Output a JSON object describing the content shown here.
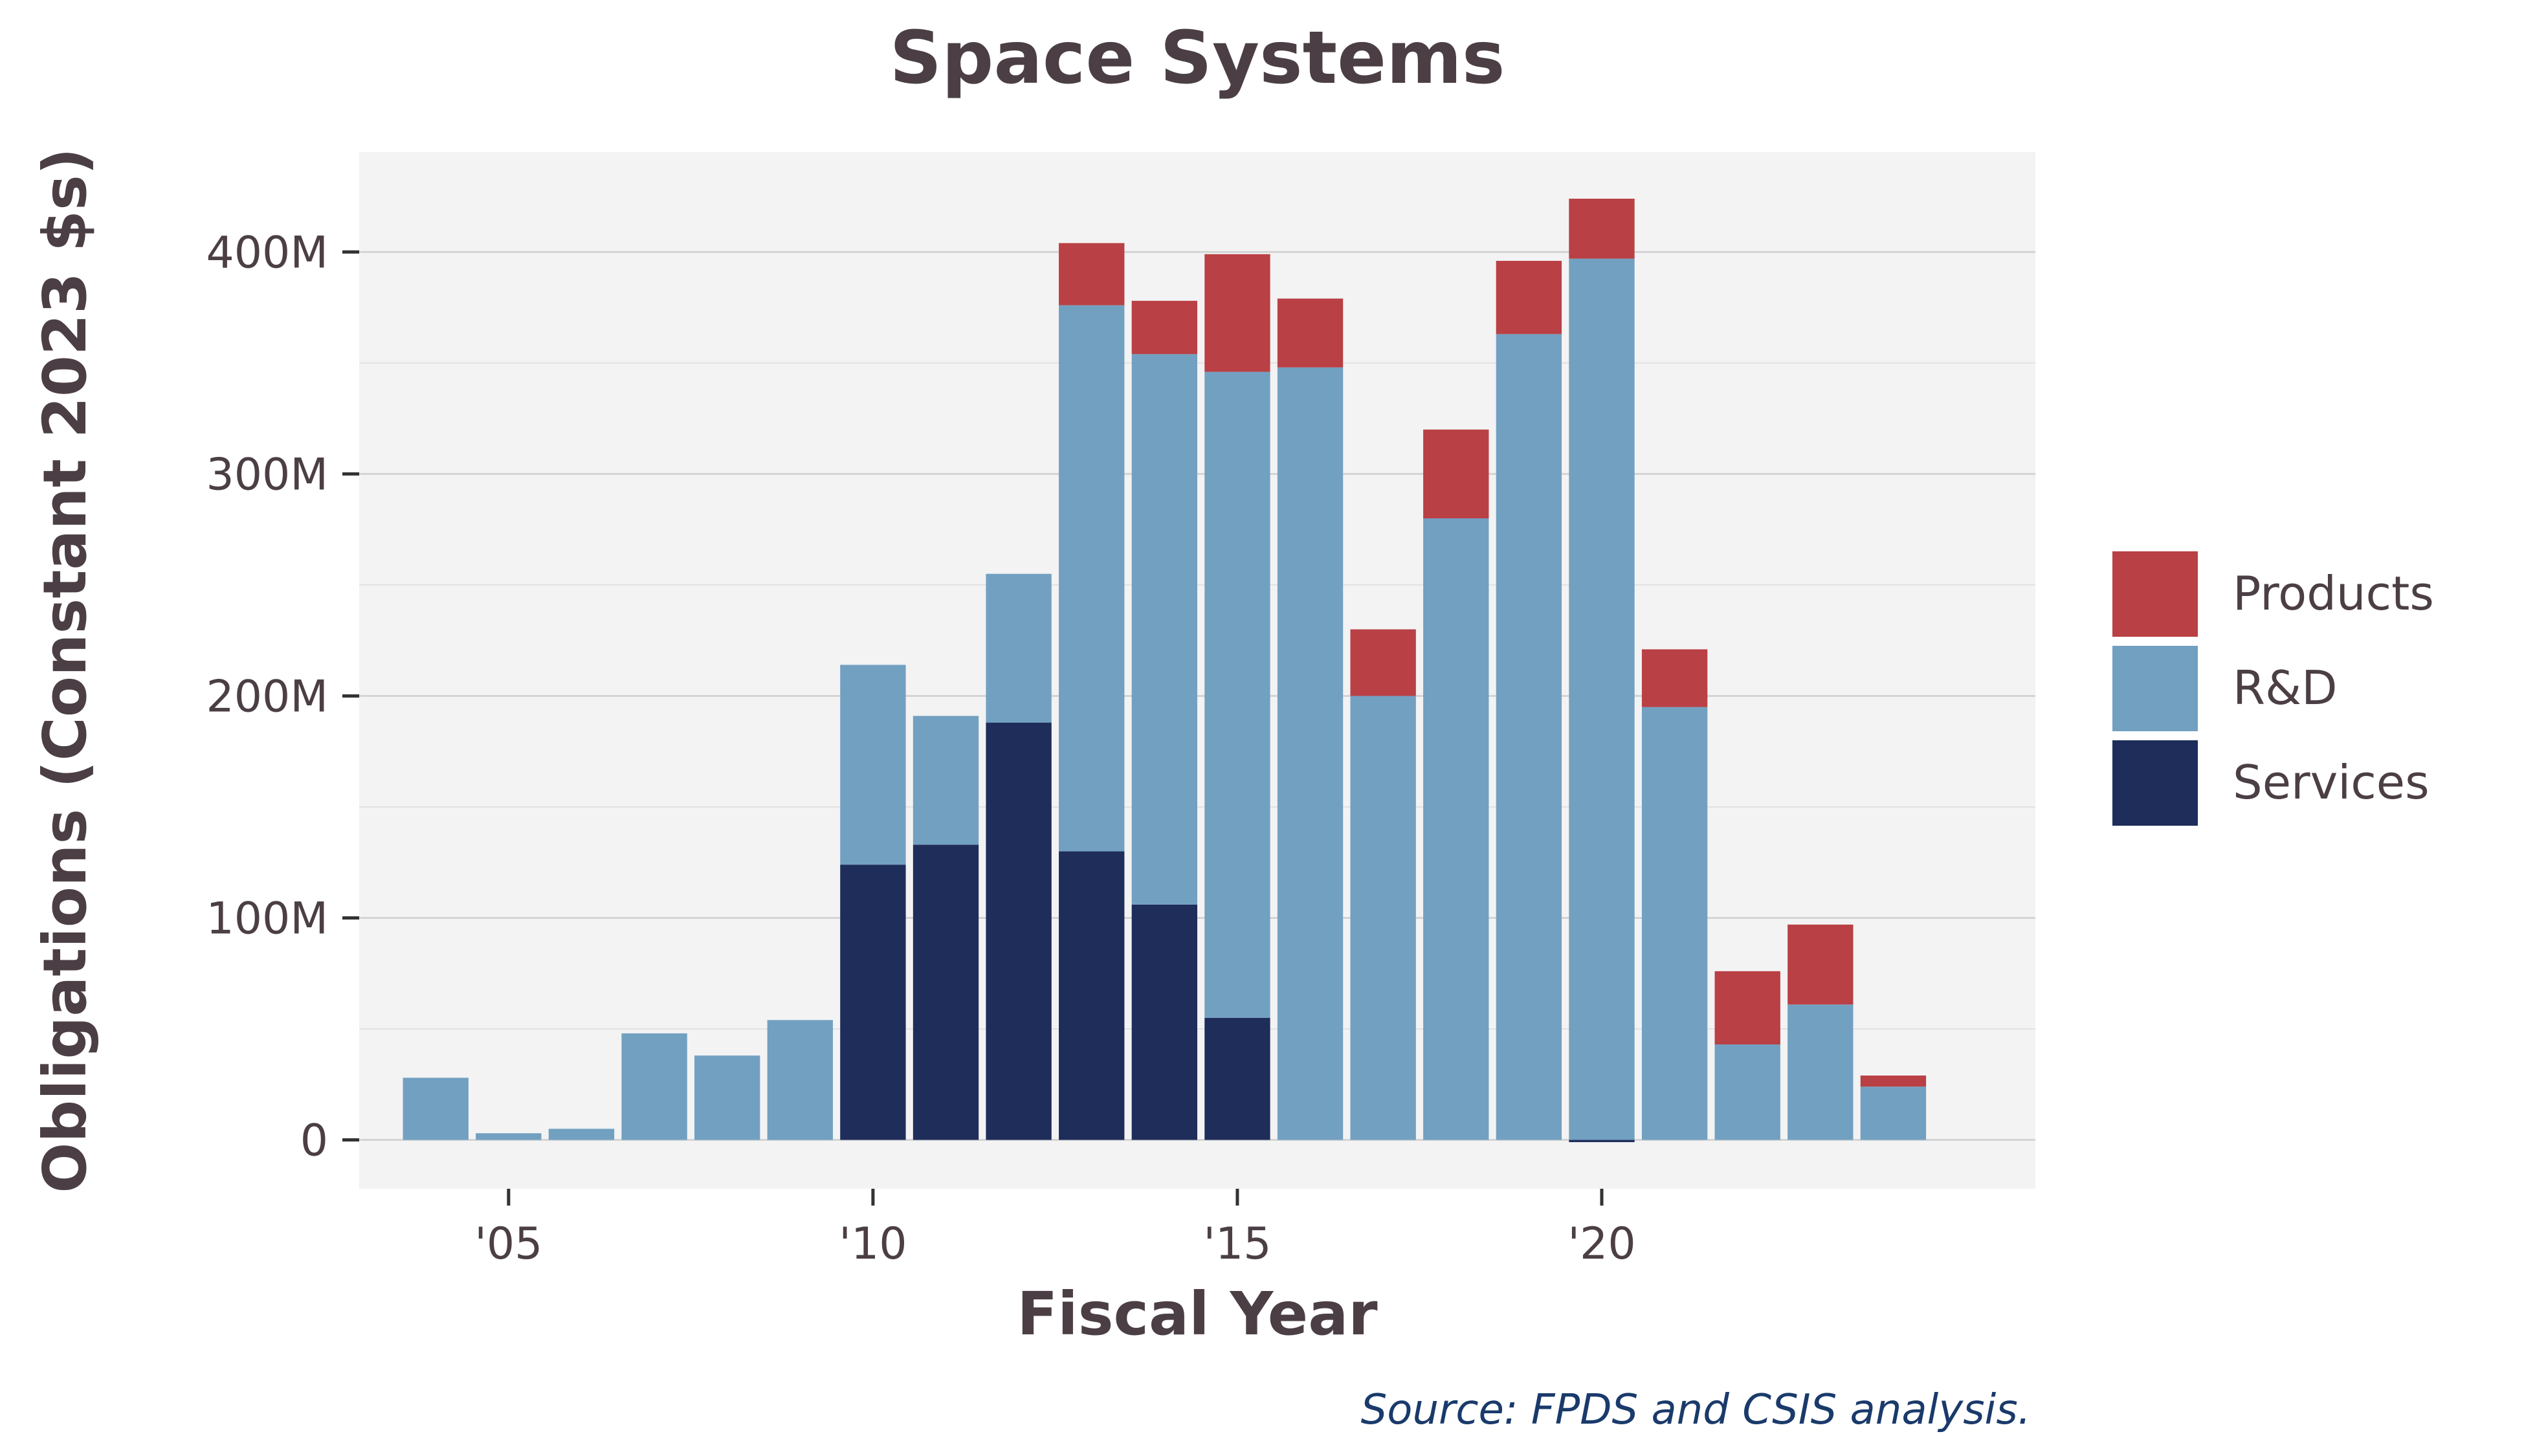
{
  "chart_data": {
    "type": "bar",
    "stacked": true,
    "title": "Space Systems",
    "xlabel": "Fiscal Year",
    "ylabel": "Obligations (Constant 2023 $s)",
    "source": "Source: FPDS and CSIS analysis.",
    "x": [
      2004,
      2005,
      2006,
      2007,
      2008,
      2009,
      2010,
      2011,
      2012,
      2013,
      2014,
      2015,
      2016,
      2017,
      2018,
      2019,
      2020,
      2021,
      2022,
      2023,
      2024
    ],
    "x_ticks": [
      2005,
      2010,
      2015,
      2020
    ],
    "x_tick_labels": [
      "'05",
      "'10",
      "'15",
      "'20"
    ],
    "y_ticks": [
      0,
      100000000,
      200000000,
      300000000,
      400000000
    ],
    "y_tick_labels": [
      "0",
      "100M",
      "200M",
      "300M",
      "400M"
    ],
    "ylim": [
      -22000000,
      445000000
    ],
    "xlim": [
      2002.95,
      2025.95
    ],
    "grid": true,
    "legend_position": "right",
    "series": [
      {
        "name": "Services",
        "color": "#1f2d5a",
        "values": [
          0,
          0,
          0,
          0,
          0,
          0,
          124000000,
          133000000,
          188000000,
          130000000,
          106000000,
          55000000,
          0,
          0,
          0,
          0,
          -1000000,
          0,
          0,
          0,
          0
        ]
      },
      {
        "name": "R&D",
        "color": "#72a0c1",
        "values": [
          28000000,
          3000000,
          5000000,
          48000000,
          38000000,
          54000000,
          90000000,
          58000000,
          67000000,
          246000000,
          248000000,
          291000000,
          348000000,
          200000000,
          280000000,
          363000000,
          397000000,
          195000000,
          43000000,
          61000000,
          24000000
        ]
      },
      {
        "name": "Products",
        "color": "#b94045",
        "values": [
          0,
          0,
          0,
          0,
          0,
          0,
          0,
          0,
          0,
          28000000,
          24000000,
          53000000,
          31000000,
          30000000,
          40000000,
          33000000,
          27000000,
          26000000,
          33000000,
          36000000,
          5000000
        ]
      }
    ],
    "legend_order": [
      "Products",
      "R&D",
      "Services"
    ]
  }
}
